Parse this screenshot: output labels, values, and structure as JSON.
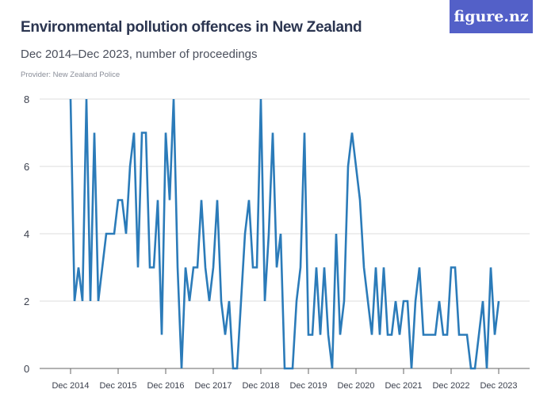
{
  "header": {
    "title": "Environmental pollution offences in New Zealand",
    "subtitle": "Dec 2014–Dec 2023, number of proceedings",
    "provider": "Provider: New Zealand Police",
    "logo": "figure.nz",
    "logo_color": "#5360c8"
  },
  "chart_data": {
    "type": "line",
    "title": "Environmental pollution offences in New Zealand",
    "subtitle": "Dec 2014–Dec 2023, number of proceedings",
    "xlabel": "",
    "ylabel": "",
    "ylim": [
      0,
      8
    ],
    "yticks": [
      0,
      2,
      4,
      6,
      8
    ],
    "grid": true,
    "line_color": "#2b7bb9",
    "x_start": "Dec 2014",
    "x_end": "Dec 2023",
    "x_frequency": "monthly",
    "xtick_labels": [
      "Dec 2014",
      "Dec 2015",
      "Dec 2016",
      "Dec 2017",
      "Dec 2018",
      "Dec 2019",
      "Dec 2020",
      "Dec 2021",
      "Dec 2022",
      "Dec 2023"
    ],
    "values": [
      8,
      2,
      3,
      2,
      8,
      2,
      7,
      2,
      3,
      4,
      4,
      4,
      5,
      5,
      4,
      6,
      7,
      3,
      7,
      7,
      3,
      3,
      5,
      1,
      7,
      5,
      8,
      3,
      0,
      3,
      2,
      3,
      3,
      5,
      3,
      2,
      3,
      5,
      2,
      1,
      2,
      0,
      0,
      2,
      4,
      5,
      3,
      3,
      8,
      2,
      4,
      7,
      3,
      4,
      0,
      0,
      0,
      2,
      3,
      7,
      1,
      1,
      3,
      1,
      3,
      1,
      0,
      4,
      1,
      2,
      6,
      7,
      6,
      5,
      3,
      2,
      1,
      3,
      1,
      3,
      1,
      1,
      2,
      1,
      2,
      2,
      0,
      2,
      3,
      1,
      1,
      1,
      1,
      2,
      1,
      1,
      3,
      3,
      1,
      1,
      1,
      0,
      0,
      1,
      2,
      0,
      3,
      1,
      2
    ]
  }
}
